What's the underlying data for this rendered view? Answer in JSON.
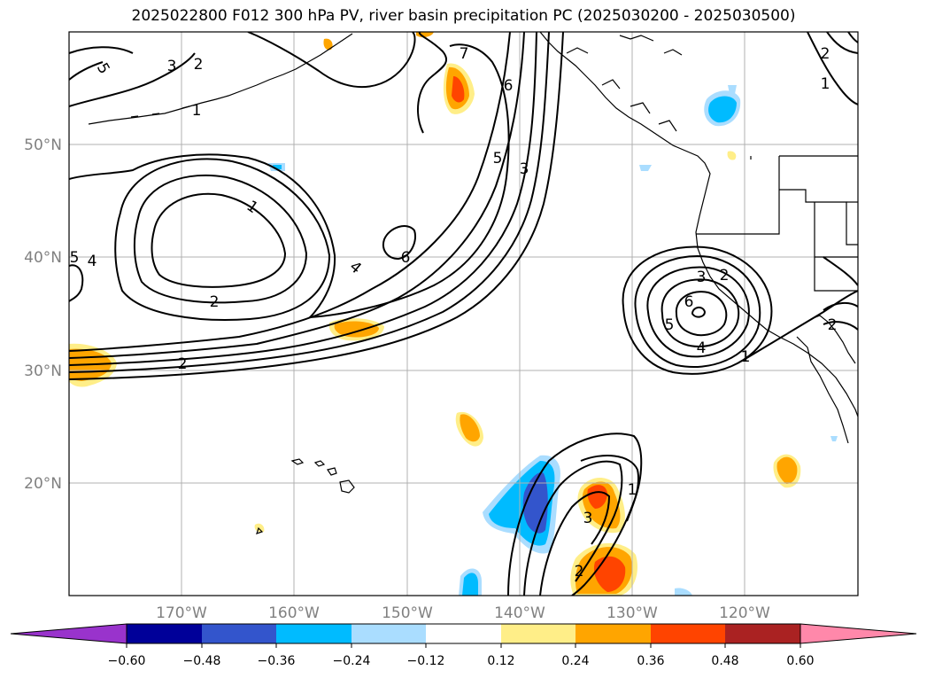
{
  "title": "2025022800 F012 300 hPa PV, river basin precipitation PC (2025030200 - 2025030500)",
  "lat_labels": [
    "50°N",
    "40°N",
    "30°N",
    "20°N"
  ],
  "lon_labels": [
    "170°W",
    "160°W",
    "150°W",
    "140°W",
    "130°W",
    "120°W"
  ],
  "contour_labels": [
    "5",
    "4",
    "1",
    "2",
    "3",
    "2",
    "1",
    "4",
    "6",
    "7",
    "6",
    "5",
    "3",
    "2",
    "3",
    "2",
    "6",
    "5",
    "4",
    "1",
    "2",
    "1",
    "3",
    "2",
    "2",
    "1",
    "5"
  ],
  "colorbar": {
    "ticks": [
      "−0.60",
      "−0.48",
      "−0.36",
      "−0.24",
      "−0.12",
      "0.12",
      "0.24",
      "0.36",
      "0.48",
      "0.60"
    ],
    "colors": [
      "#9933cc",
      "#000099",
      "#3355cc",
      "#00bbff",
      "#aaddff",
      "#ffffff",
      "#ffee88",
      "#ffa500",
      "#ff4400",
      "#aa2222",
      "#ff88aa"
    ]
  },
  "colors": {
    "land": "#ffffff",
    "coast": "#000000",
    "grid": "#b0b0b0",
    "pv_contour": "#000000"
  }
}
